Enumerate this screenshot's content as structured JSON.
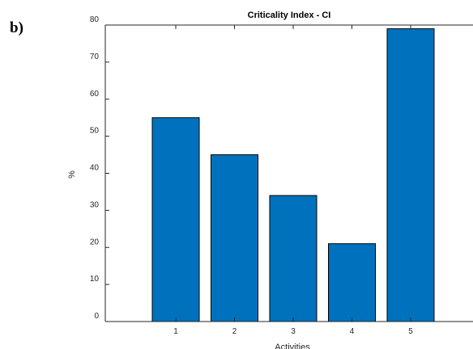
{
  "panel_label": "b)",
  "chart_data": {
    "type": "bar",
    "title": "Criticality Index - CI",
    "xlabel": "Activities",
    "ylabel": "%",
    "categories": [
      "1",
      "2",
      "3",
      "4",
      "5"
    ],
    "values": [
      55,
      45,
      34,
      21,
      79
    ],
    "color": "#0072bd",
    "ylim": [
      0,
      80
    ],
    "yticks": [
      0,
      10,
      20,
      30,
      40,
      50,
      60,
      70,
      80
    ],
    "grid": false
  }
}
